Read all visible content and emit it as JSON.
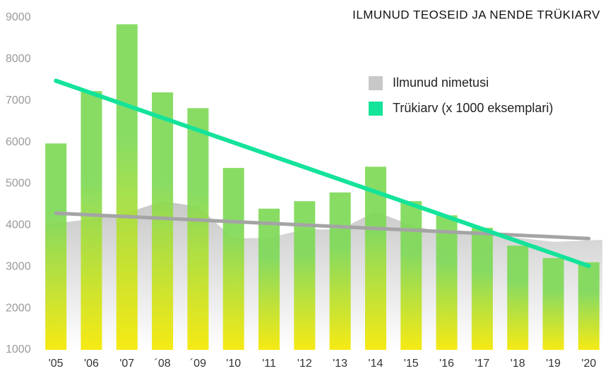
{
  "chart_data": {
    "type": "bar",
    "title": "ILMUNUD TEOSEID JA NENDE TRÜKIARV",
    "categories": [
      "'05",
      "'06",
      "'07",
      "´08",
      "´09",
      "'10",
      "'11",
      "'12",
      "'13",
      "'14",
      "'15",
      "'16",
      "'17",
      "'18",
      "'19",
      "'20"
    ],
    "series": [
      {
        "name": "Ilmunud nimetusi",
        "color": "#c8c8c8",
        "kind": "area",
        "values": [
          4020,
          4150,
          4300,
          4580,
          4450,
          3680,
          3700,
          3900,
          3900,
          4330,
          4000,
          3800,
          3800,
          3700,
          3600,
          3650
        ]
      },
      {
        "name": "Trükiarv (x 1000 eksemplari)",
        "color": "#14e39a",
        "kind": "bar",
        "gradient": [
          "#7ed957",
          "#f5e800"
        ],
        "values": [
          5970,
          7230,
          8840,
          7200,
          6820,
          5380,
          4400,
          4580,
          4790,
          5410,
          4580,
          4240,
          3940,
          3510,
          3210,
          3110
        ]
      }
    ],
    "trendlines": [
      {
        "series": 0,
        "color": "#a4a4a4",
        "values": [
          4290,
          3680
        ]
      },
      {
        "series": 1,
        "color": "#14e39a",
        "values": [
          7480,
          3020
        ]
      }
    ],
    "ylim": [
      1000,
      9000
    ],
    "yticks": [
      1000,
      2000,
      3000,
      4000,
      5000,
      6000,
      7000,
      8000,
      9000
    ],
    "grid": false,
    "legend": "top-right"
  }
}
